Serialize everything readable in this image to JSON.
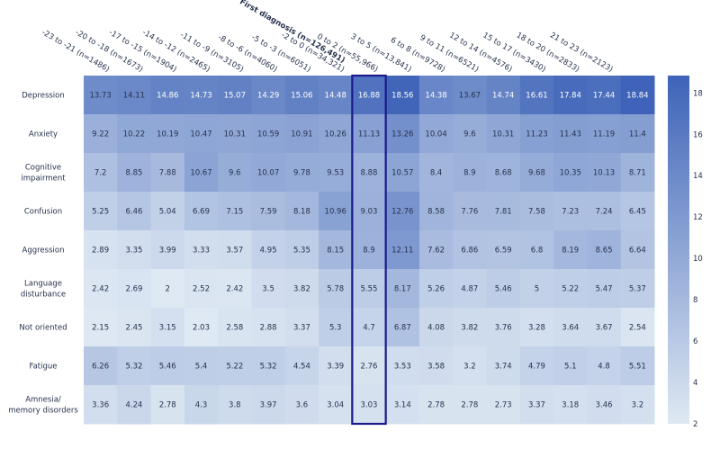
{
  "chart_data": {
    "type": "heatmap",
    "columns": [
      "-23 to -21 (n=1486)",
      "-20 to -18 (n=1673)",
      "-17 to -15 (n=1904)",
      "-14 to -12 (n=2465)",
      "-11 to -9 (n=3105)",
      "-8 to -6 (n=4060)",
      "-5 to -3 (n=6051)",
      "-2 to 0 (n=34,321)",
      "First diagnosis (n=126,491)",
      "0 to 2 (n=55,966)",
      "3 to 5 (n=13,841)",
      "6 to 8 (n=9728)",
      "9 to 11 (n=6521)",
      "12 to 14 (n=4576)",
      "15 to 17 (n=3430)",
      "18 to 20 (n=2833)",
      "21 to 23 (n=2123)"
    ],
    "highlight_column": "First diagnosis (n=126,491)",
    "rows": [
      {
        "label": [
          "Depression"
        ],
        "values": [
          13.73,
          14.11,
          14.86,
          14.73,
          15.07,
          14.29,
          15.06,
          14.48,
          16.88,
          18.56,
          14.38,
          13.67,
          14.74,
          16.61,
          17.84,
          17.44,
          18.84
        ]
      },
      {
        "label": [
          "Anxiety"
        ],
        "values": [
          9.22,
          10.22,
          10.19,
          10.47,
          10.31,
          10.59,
          10.91,
          10.26,
          11.13,
          13.26,
          10.04,
          9.6,
          10.31,
          11.23,
          11.43,
          11.19,
          11.4
        ]
      },
      {
        "label": [
          "Cognitive",
          "impairment"
        ],
        "values": [
          7.2,
          8.85,
          7.88,
          10.67,
          9.6,
          10.07,
          9.78,
          9.53,
          8.88,
          10.57,
          8.4,
          8.9,
          8.68,
          9.68,
          10.35,
          10.13,
          8.71
        ]
      },
      {
        "label": [
          "Confusion"
        ],
        "values": [
          5.25,
          6.46,
          5.04,
          6.69,
          7.15,
          7.59,
          8.18,
          10.96,
          9.03,
          12.76,
          8.58,
          7.76,
          7.81,
          7.58,
          7.23,
          7.24,
          6.45
        ]
      },
      {
        "label": [
          "Aggression"
        ],
        "values": [
          2.89,
          3.35,
          3.99,
          3.33,
          3.57,
          4.95,
          5.35,
          8.15,
          8.9,
          12.11,
          7.62,
          6.86,
          6.59,
          6.8,
          8.19,
          8.65,
          6.64
        ]
      },
      {
        "label": [
          "Language",
          "disturbance"
        ],
        "values": [
          2.42,
          2.69,
          2,
          2.52,
          2.42,
          3.5,
          3.82,
          5.78,
          5.55,
          8.17,
          5.26,
          4.87,
          5.46,
          5,
          5.22,
          5.47,
          5.37
        ]
      },
      {
        "label": [
          "Not oriented"
        ],
        "values": [
          2.15,
          2.45,
          3.15,
          2.03,
          2.58,
          2.88,
          3.37,
          5.3,
          4.7,
          6.87,
          4.08,
          3.82,
          3.76,
          3.28,
          3.64,
          3.67,
          2.54
        ]
      },
      {
        "label": [
          "Fatigue"
        ],
        "values": [
          6.26,
          5.32,
          5.46,
          5.4,
          5.22,
          5.32,
          4.54,
          3.39,
          2.76,
          3.53,
          3.58,
          3.2,
          3.74,
          4.79,
          5.1,
          4.8,
          5.51
        ]
      },
      {
        "label": [
          "Amnesia/",
          "memory disorders"
        ],
        "values": [
          3.36,
          4.24,
          2.78,
          4.3,
          3.8,
          3.97,
          3.6,
          3.04,
          3.03,
          3.14,
          2.78,
          2.78,
          2.73,
          3.37,
          3.18,
          3.46,
          3.2
        ]
      }
    ],
    "colorbar": {
      "min": 2,
      "max": 18.84,
      "ticks": [
        2,
        4,
        6,
        8,
        10,
        12,
        14,
        16,
        18
      ],
      "low_color": "#dfe9f3",
      "high_color": "#3e63b8"
    },
    "highlight_color": "#1a1a8c"
  }
}
